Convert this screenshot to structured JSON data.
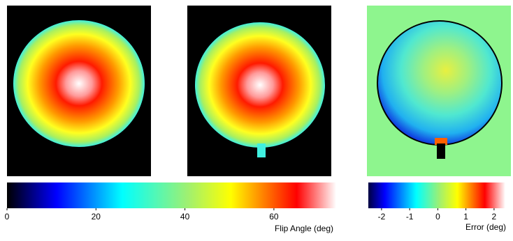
{
  "colorbars": [
    {
      "label": "Flip Angle (deg)",
      "lim": [
        0,
        74
      ],
      "ticks": [
        0,
        20,
        40,
        60
      ]
    },
    {
      "label": "Error (deg)",
      "lim": [
        -2.47,
        2.4
      ],
      "ticks": [
        -2,
        -1,
        0,
        1,
        2
      ]
    }
  ]
}
